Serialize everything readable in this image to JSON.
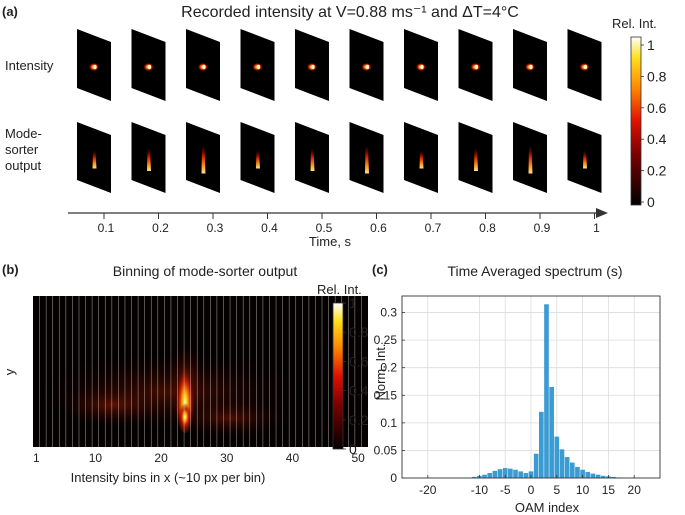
{
  "panel_a": {
    "label": "(a)",
    "title": "Recorded intensity at V=0.88 ms⁻¹ and ΔT=4°C",
    "row_labels": [
      "Intensity",
      "Mode-",
      "sorter",
      "output"
    ],
    "xlabel": "Time, s",
    "times": [
      "0.1",
      "0.2",
      "0.3",
      "0.4",
      "0.5",
      "0.6",
      "0.7",
      "0.8",
      "0.9",
      "1"
    ],
    "colorbar": {
      "label": "Rel. Int.",
      "ticks": [
        "1",
        "0.8",
        "0.6",
        "0.4",
        "0.2",
        "0"
      ]
    }
  },
  "panel_b": {
    "label": "(b)",
    "title": "Binning of mode-sorter output",
    "ylabel": "y",
    "xlabel": "Intensity bins in x (~10 px per bin)",
    "xticks": [
      "1",
      "10",
      "20",
      "30",
      "40",
      "50"
    ],
    "colorbar": {
      "label": "Rel. Int.",
      "ticks": [
        "1",
        "0.8",
        "0.6",
        "0.4",
        "0.2",
        "0"
      ]
    }
  },
  "chart_data": {
    "type": "bar",
    "panel_label": "(c)",
    "title": "Time Averaged spectrum (s)",
    "xlabel": "OAM index",
    "ylabel": "Norm. Int.",
    "xlim": [
      -25,
      25
    ],
    "ylim": [
      0,
      0.33
    ],
    "xticks": [
      -20,
      -10,
      -5,
      0,
      5,
      10,
      15,
      20
    ],
    "xtick_labels": [
      "-20",
      "-10",
      "-5",
      "0",
      "5",
      "10",
      "15",
      "20"
    ],
    "yticks": [
      0,
      0.05,
      0.1,
      0.15,
      0.2,
      0.25,
      0.3
    ],
    "ytick_labels": [
      "0",
      "0.05",
      "0.1",
      "0.15",
      "0.2",
      "0.25",
      "0.3"
    ],
    "grid": true,
    "color": "#3b9bd3",
    "x": [
      -11,
      -10,
      -9,
      -8,
      -7,
      -6,
      -5,
      -4,
      -3,
      -2,
      -1,
      0,
      1,
      2,
      3,
      4,
      5,
      6,
      7,
      8,
      9,
      10,
      11,
      12,
      13,
      14,
      15,
      16,
      17
    ],
    "values": [
      0.002,
      0.004,
      0.006,
      0.009,
      0.013,
      0.016,
      0.018,
      0.017,
      0.015,
      0.012,
      0.009,
      0.012,
      0.044,
      0.12,
      0.315,
      0.165,
      0.075,
      0.052,
      0.038,
      0.028,
      0.02,
      0.015,
      0.011,
      0.008,
      0.006,
      0.004,
      0.003,
      0.002,
      0.001
    ]
  }
}
